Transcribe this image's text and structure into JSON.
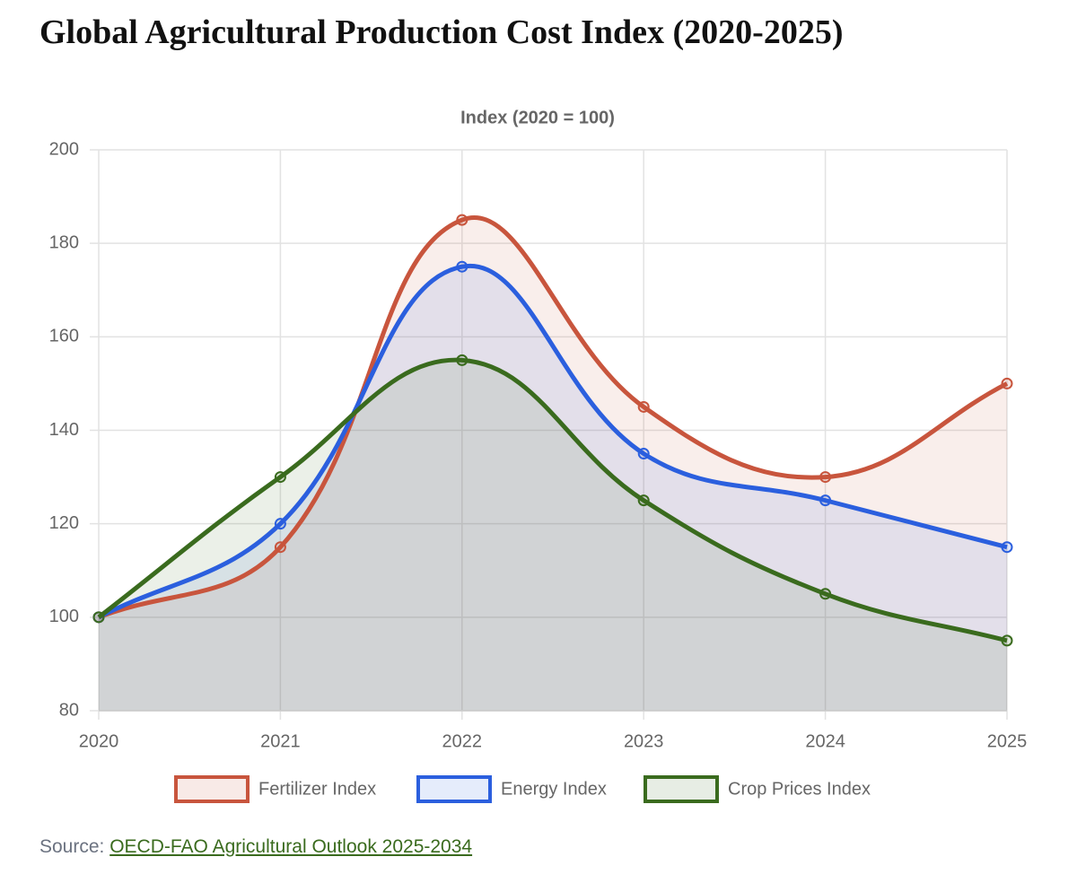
{
  "title": "Global Agricultural Production Cost Index (2020-2025)",
  "chart_data": {
    "type": "line",
    "ylabel": "Index (2020 = 100)",
    "categories": [
      "2020",
      "2021",
      "2022",
      "2023",
      "2024",
      "2025"
    ],
    "series": [
      {
        "name": "Fertilizer Index",
        "color": "#c8553d",
        "values": [
          100,
          115,
          185,
          145,
          130,
          150
        ]
      },
      {
        "name": "Energy Index",
        "color": "#2b5fde",
        "values": [
          100,
          120,
          175,
          135,
          125,
          115
        ]
      },
      {
        "name": "Crop Prices Index",
        "color": "#3a6b1e",
        "values": [
          100,
          130,
          155,
          125,
          105,
          95
        ]
      }
    ],
    "ylim": [
      80,
      200
    ],
    "yticks": [
      80,
      100,
      120,
      140,
      160,
      180,
      200
    ],
    "grid": true,
    "fill": true,
    "legend": "bottom"
  },
  "source": {
    "label": "Source:",
    "link": "OECD-FAO Agricultural Outlook 2025-2034"
  }
}
